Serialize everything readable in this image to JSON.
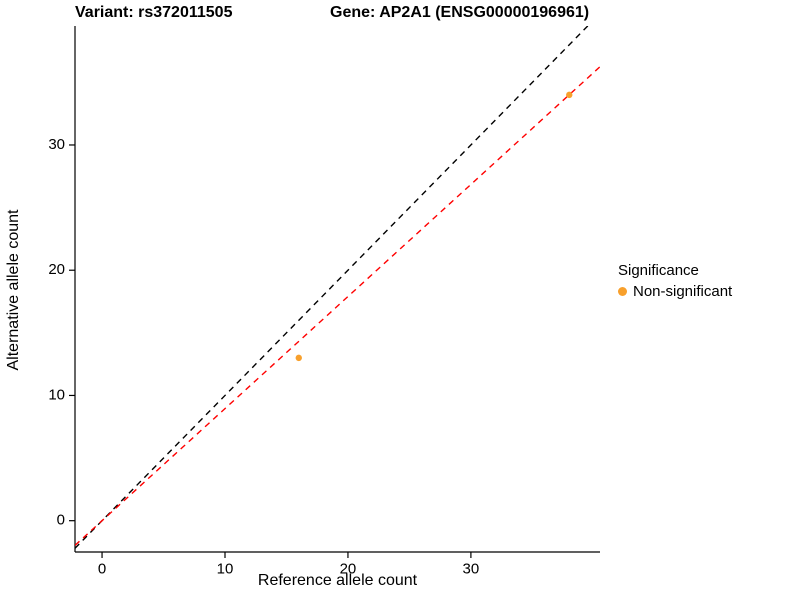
{
  "titles": {
    "variant": "Variant: rs372011505",
    "gene": "Gene: AP2A1 (ENSG00000196961)"
  },
  "chart_data": {
    "type": "scatter",
    "title_left": "Variant: rs372011505",
    "title_right": "Gene: AP2A1 (ENSG00000196961)",
    "xlabel": "Reference allele count",
    "ylabel": "Alternative allele count",
    "xlim": [
      -2.2,
      40.5
    ],
    "ylim": [
      -2.5,
      39.5
    ],
    "xticks": [
      0,
      10,
      20,
      30
    ],
    "yticks": [
      0,
      10,
      20,
      30
    ],
    "grid": false,
    "series": [
      {
        "name": "Non-significant",
        "color": "#F8A02C",
        "points": [
          [
            16,
            13
          ],
          [
            38,
            34
          ]
        ]
      }
    ],
    "lines": [
      {
        "name": "identity",
        "slope": 1,
        "intercept": 0,
        "color": "#000000",
        "style": "dashed"
      },
      {
        "name": "fit",
        "slope": 0.895,
        "intercept": 0,
        "color": "#FF0000",
        "style": "dashed"
      }
    ],
    "legend": {
      "position": "right",
      "title": "Significance",
      "items": [
        {
          "label": "Non-significant",
          "color": "#F8A02C"
        }
      ]
    }
  }
}
